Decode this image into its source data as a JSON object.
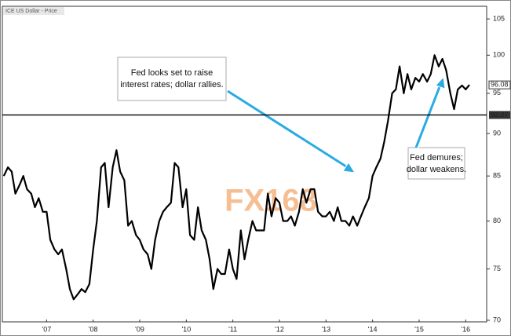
{
  "chart_data": {
    "type": "line",
    "series": [
      {
        "name": "ICE US Dollar - Price",
        "color": "#000000",
        "values": [
          85,
          86,
          85.5,
          83,
          84,
          85,
          83.5,
          83,
          81.5,
          82.5,
          81,
          81,
          78,
          77,
          76.5,
          77,
          75,
          73,
          72,
          72.5,
          73,
          72.7,
          73.5,
          77,
          80,
          86,
          86.5,
          81.5,
          86,
          88,
          85.5,
          84.5,
          79.5,
          80,
          78.5,
          78,
          77,
          76.5,
          75,
          78,
          80,
          81,
          81.5,
          82,
          86.5,
          86,
          81.5,
          83.5,
          78.5,
          78,
          81.5,
          79,
          78,
          76,
          73,
          75,
          74.5,
          74.5,
          77,
          75,
          74,
          79,
          76,
          78,
          80,
          79,
          79,
          79,
          83,
          80.5,
          82.5,
          82,
          80,
          80,
          80.5,
          79.5,
          81,
          83.5,
          82,
          83.5,
          83.5,
          81,
          80.5,
          80.5,
          81,
          80,
          81.5,
          80,
          80,
          79.5,
          80.5,
          79.5,
          80.5,
          81.5,
          82.5,
          85,
          86,
          87,
          89,
          91.5,
          95,
          95.5,
          98.5,
          95,
          97.5,
          95.5,
          97,
          96.5,
          97.5,
          96.5,
          97.5,
          100,
          98.5,
          99.5,
          98,
          95,
          93,
          95.5,
          96,
          95.5,
          96.08
        ]
      }
    ],
    "x": [
      2006.58,
      2006.67,
      2006.75,
      2006.83,
      2006.92,
      2007.0,
      2007.08,
      2007.17,
      2007.25,
      2007.33,
      2007.42,
      2007.5,
      2007.58,
      2007.67,
      2007.75,
      2007.83,
      2007.92,
      2008.0,
      2008.08,
      2008.17,
      2008.25,
      2008.33,
      2008.42,
      2008.5,
      2008.58,
      2008.67,
      2008.75,
      2008.83,
      2008.92,
      2009.0,
      2009.08,
      2009.17,
      2009.25,
      2009.33,
      2009.42,
      2009.5,
      2009.58,
      2009.67,
      2009.75,
      2009.83,
      2009.92,
      2010.0,
      2010.08,
      2010.17,
      2010.25,
      2010.33,
      2010.42,
      2010.5,
      2010.58,
      2010.67,
      2010.75,
      2010.83,
      2010.92,
      2011.0,
      2011.08,
      2011.17,
      2011.25,
      2011.33,
      2011.42,
      2011.5,
      2011.58,
      2011.67,
      2011.75,
      2011.83,
      2011.92,
      2012.0,
      2012.08,
      2012.17,
      2012.25,
      2012.33,
      2012.42,
      2012.5,
      2012.58,
      2012.67,
      2012.75,
      2012.83,
      2012.92,
      2013.0,
      2013.08,
      2013.17,
      2013.25,
      2013.33,
      2013.42,
      2013.5,
      2013.58,
      2013.67,
      2013.75,
      2013.83,
      2013.92,
      2014.0,
      2014.08,
      2014.17,
      2014.25,
      2014.33,
      2014.42,
      2014.5,
      2014.58,
      2014.67,
      2014.75,
      2014.83,
      2014.92,
      2015.0,
      2015.08,
      2015.17,
      2015.25,
      2015.33,
      2015.42,
      2015.5,
      2015.58,
      2015.67,
      2015.75,
      2015.83,
      2015.92,
      2016.0,
      2016.08,
      2016.17,
      2016.25,
      2016.33,
      2016.42,
      2016.5,
      2016.58
    ],
    "xlim": [
      2006.55,
      2016.95
    ],
    "xticks": [
      {
        "value": 2007.5,
        "label": "'07"
      },
      {
        "value": 2008.5,
        "label": "'08"
      },
      {
        "value": 2009.5,
        "label": "'09"
      },
      {
        "value": 2010.5,
        "label": "'10"
      },
      {
        "value": 2011.5,
        "label": "'11"
      },
      {
        "value": 2012.5,
        "label": "'12"
      },
      {
        "value": 2013.5,
        "label": "'13"
      },
      {
        "value": 2014.5,
        "label": "'14"
      },
      {
        "value": 2015.5,
        "label": "'15"
      },
      {
        "value": 2016.5,
        "label": "'16"
      }
    ],
    "ylim": [
      69.85,
      106.8
    ],
    "yticks": [
      70,
      75,
      80,
      85,
      90,
      95,
      100,
      105
    ],
    "log_scale": true,
    "reference_line": 92.27,
    "last_price": 96.08,
    "watermark": "FX168",
    "annotations": [
      {
        "lines": [
          "Fed looks set to raise",
          "interest rates; dollar rallies."
        ]
      },
      {
        "lines": [
          "Fed demures;",
          "dollar weakens."
        ]
      }
    ]
  }
}
